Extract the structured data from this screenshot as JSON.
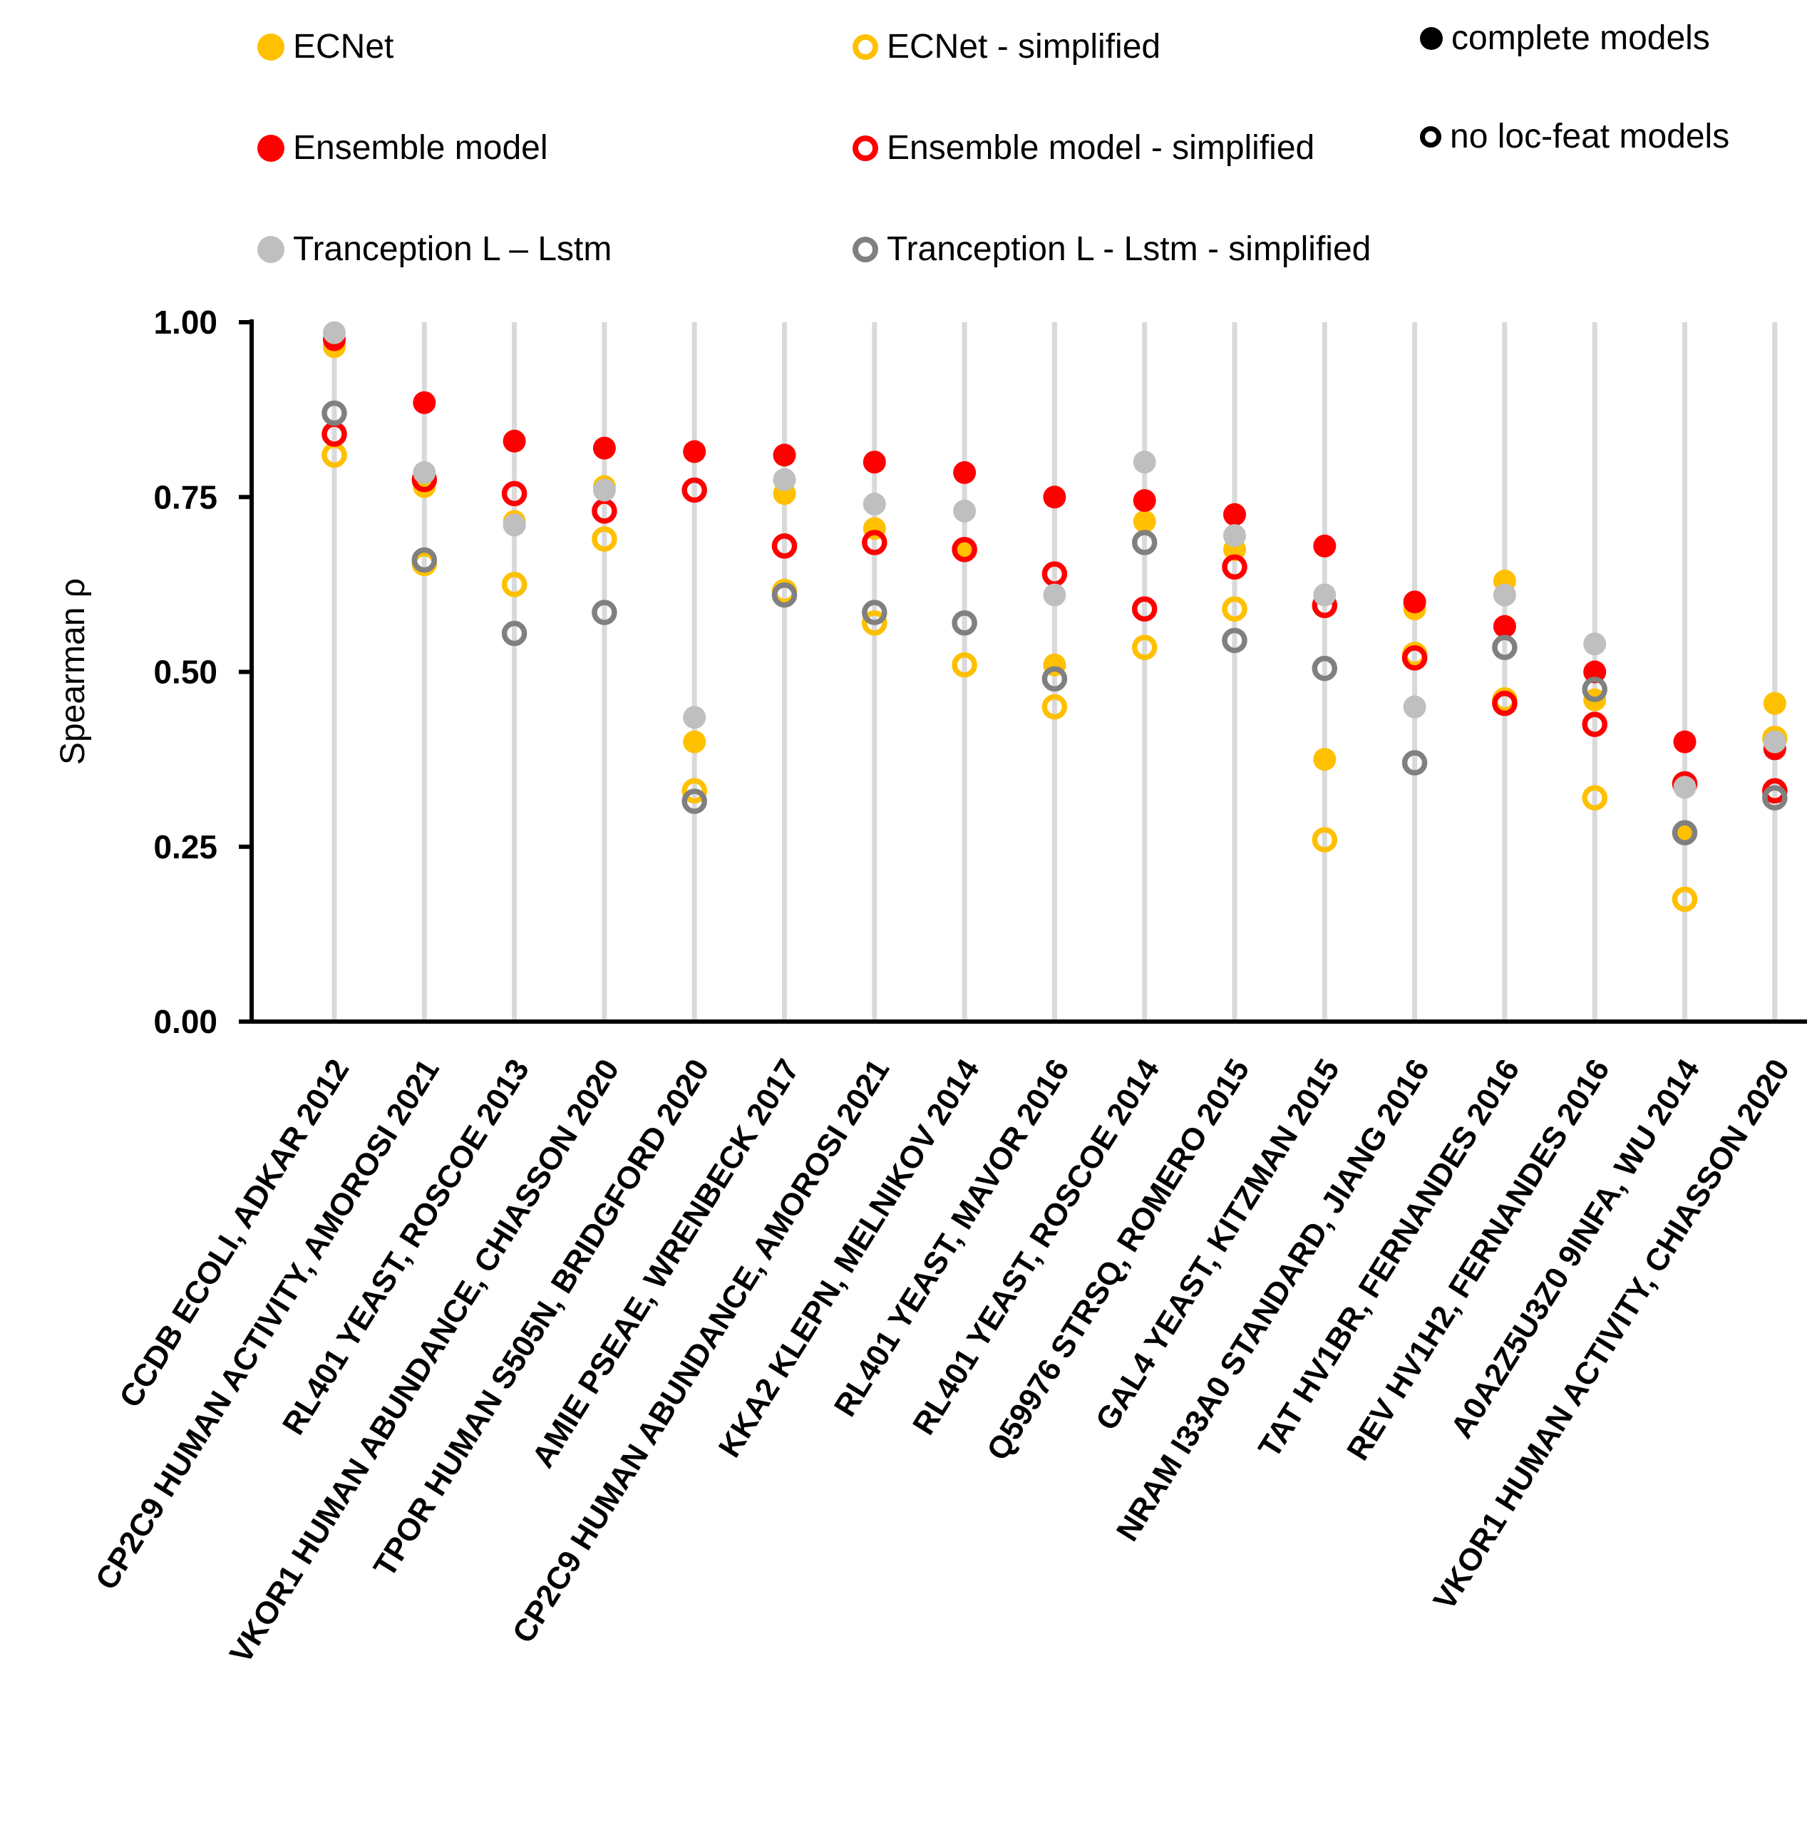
{
  "chart_data": {
    "type": "scatter",
    "title": "",
    "xlabel": "",
    "ylabel": "Spearman ρ",
    "ylim": [
      0.0,
      1.0
    ],
    "grid": "vertical-gridline-per-category",
    "legend_position": "top",
    "yticks": [
      {
        "value": 1.0,
        "label": "1.00"
      },
      {
        "value": 0.75,
        "label": "0.75"
      },
      {
        "value": 0.5,
        "label": "0.50"
      },
      {
        "value": 0.25,
        "label": "0.25"
      },
      {
        "value": 0.0,
        "label": "0.00"
      }
    ],
    "categories": [
      "CCDB ECOLI, ADKAR 2012",
      "CP2C9 HUMAN ACTIVITY, AMOROSI 2021",
      "RL401 YEAST, ROSCOE 2013",
      "VKOR1 HUMAN ABUNDANCE, CHIASSON 2020",
      "TPOR HUMAN S505N, BRIDGFORD 2020",
      "AMIE PSEAE, WRENBECK 2017",
      "CP2C9 HUMAN ABUNDANCE, AMOROSI 2021",
      "KKA2 KLEPN, MELNIKOV 2014",
      "RL401 YEAST, MAVOR 2016",
      "RL401 YEAST, ROSCOE 2014",
      "Q59976 STRSQ, ROMERO 2015",
      "GAL4 YEAST, KITZMAN 2015",
      "NRAM I33A0 STANDARD, JIANG 2016",
      "TAT HV1BR, FERNANDES 2016",
      "REV HV1H2, FERNANDES 2016",
      "A0A2Z5U3Z0 9INFA, WU 2014",
      "VKOR1 HUMAN ACTIVITY, CHIASSON 2020"
    ],
    "series": [
      {
        "name": "ECNet",
        "marker": "filled",
        "color": "#FFC000",
        "values": [
          0.965,
          0.765,
          0.715,
          0.765,
          0.4,
          0.755,
          0.705,
          0.675,
          0.51,
          0.715,
          0.675,
          0.375,
          0.59,
          0.63,
          0.46,
          0.27,
          0.455
        ]
      },
      {
        "name": "ECNet - simplified",
        "marker": "open",
        "color": "#FFC000",
        "values": [
          0.81,
          0.655,
          0.625,
          0.69,
          0.33,
          0.615,
          0.57,
          0.51,
          0.45,
          0.535,
          0.59,
          0.26,
          0.525,
          0.46,
          0.32,
          0.175,
          0.405
        ]
      },
      {
        "name": "Ensemble model",
        "marker": "filled",
        "color": "#FF0000",
        "values": [
          0.975,
          0.885,
          0.83,
          0.82,
          0.815,
          0.81,
          0.8,
          0.785,
          0.75,
          0.745,
          0.725,
          0.68,
          0.6,
          0.565,
          0.5,
          0.4,
          0.39
        ]
      },
      {
        "name": "Ensemble model - simplified",
        "marker": "open",
        "color": "#FF0000",
        "values": [
          0.84,
          0.775,
          0.755,
          0.73,
          0.76,
          0.68,
          0.685,
          0.675,
          0.64,
          0.59,
          0.65,
          0.595,
          0.52,
          0.455,
          0.425,
          0.34,
          0.33
        ]
      },
      {
        "name": "Tranception L – Lstm",
        "marker": "filled",
        "color": "#BFBFBF",
        "values": [
          0.985,
          0.785,
          0.71,
          0.76,
          0.435,
          0.775,
          0.74,
          0.73,
          0.61,
          0.8,
          0.695,
          0.61,
          0.45,
          0.61,
          0.54,
          0.335,
          0.4
        ]
      },
      {
        "name": "Tranception L - Lstm - simplified",
        "marker": "open",
        "color": "#808080",
        "values": [
          0.87,
          0.66,
          0.555,
          0.585,
          0.315,
          0.61,
          0.585,
          0.57,
          0.49,
          0.685,
          0.545,
          0.505,
          0.37,
          0.535,
          0.475,
          0.27,
          0.32
        ]
      }
    ],
    "legend_meta": [
      {
        "label": "complete models",
        "marker": "filled",
        "color": "#000000"
      },
      {
        "label": "no loc-feat models",
        "marker": "open",
        "color": "#000000"
      }
    ]
  }
}
